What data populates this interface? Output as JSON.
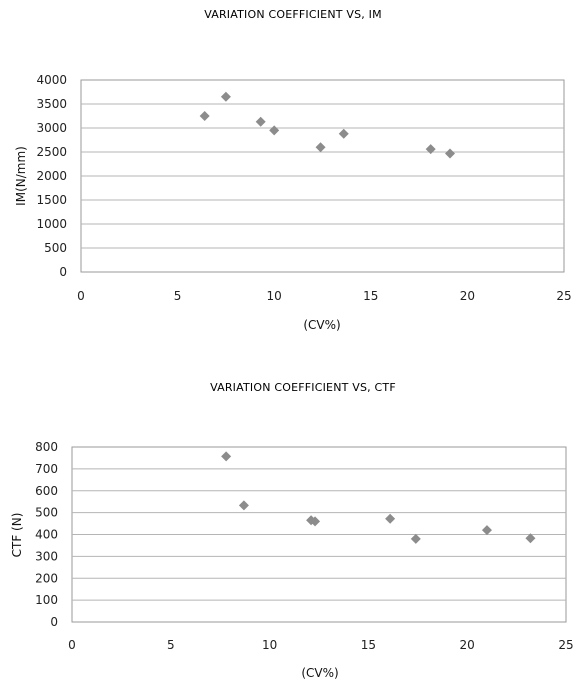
{
  "chart_data": [
    {
      "type": "scatter",
      "title": "VARIATION COEFFICIENT VS, IM",
      "xlabel": "(CV%)",
      "ylabel": "IM(N/mm)",
      "xlim": [
        0,
        25
      ],
      "ylim": [
        0,
        4000
      ],
      "xticks": [
        "0",
        "5",
        "10",
        "15",
        "20",
        "25"
      ],
      "yticks": [
        "0",
        "500",
        "1000",
        "1500",
        "2000",
        "2500",
        "3000",
        "3500",
        "4000"
      ],
      "grid": "horizontal",
      "marker": "diamond",
      "color": "#8c8c8c",
      "points": [
        {
          "x": 6.4,
          "y": 3250
        },
        {
          "x": 7.5,
          "y": 3650
        },
        {
          "x": 9.3,
          "y": 3130
        },
        {
          "x": 10.0,
          "y": 2950
        },
        {
          "x": 12.4,
          "y": 2600
        },
        {
          "x": 13.6,
          "y": 2880
        },
        {
          "x": 18.1,
          "y": 2560
        },
        {
          "x": 19.1,
          "y": 2470
        }
      ]
    },
    {
      "type": "scatter",
      "title": "VARIATION COEFFICIENT VS, CTF",
      "xlabel": "(CV%)",
      "ylabel": "CTF (N)",
      "xlim": [
        0,
        25
      ],
      "ylim": [
        0,
        800
      ],
      "xticks": [
        "0",
        "5",
        "10",
        "15",
        "20",
        "25"
      ],
      "yticks": [
        "0",
        "100",
        "200",
        "300",
        "400",
        "500",
        "600",
        "700",
        "800"
      ],
      "grid": "horizontal",
      "marker": "diamond",
      "color": "#8c8c8c",
      "points": [
        {
          "x": 7.8,
          "y": 757
        },
        {
          "x": 8.7,
          "y": 533
        },
        {
          "x": 12.1,
          "y": 465
        },
        {
          "x": 12.3,
          "y": 460
        },
        {
          "x": 16.1,
          "y": 472
        },
        {
          "x": 17.4,
          "y": 380
        },
        {
          "x": 21.0,
          "y": 420
        },
        {
          "x": 23.2,
          "y": 383
        }
      ]
    }
  ]
}
